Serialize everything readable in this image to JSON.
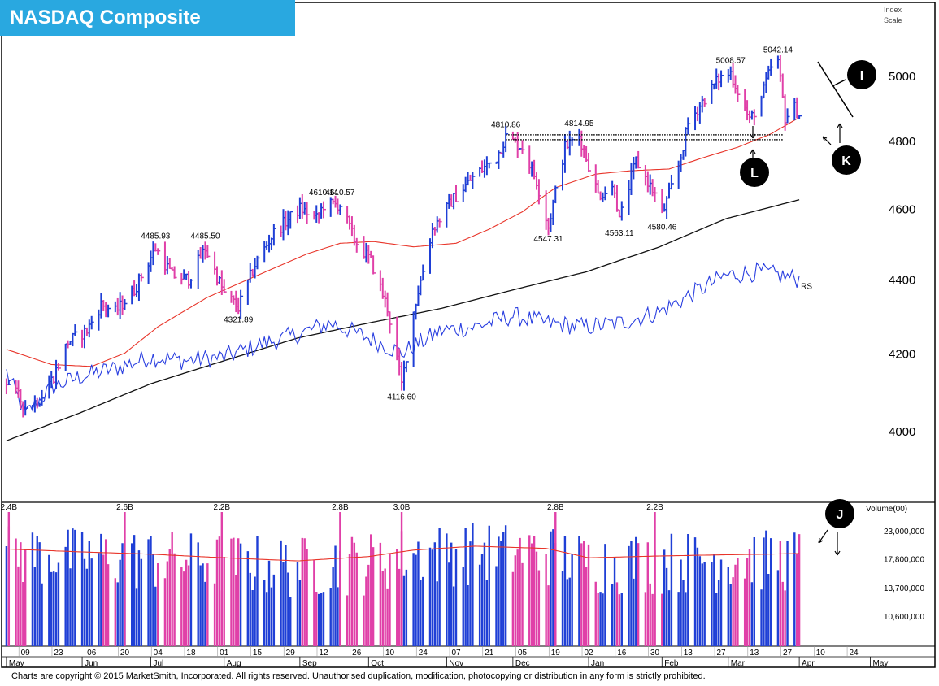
{
  "title": "NASDAQ Composite",
  "copyright": "Charts are copyright © 2015 MarketSmith, Incorporated. All rights reserved. Unauthorised duplication, modification, photocopying or distribution in any form is strictly prohibited.",
  "colors": {
    "banner": "#29a8e0",
    "up_bar": "#1f3fd6",
    "down_bar": "#e040a8",
    "ma_short": "#e8352a",
    "ma_long": "#111111",
    "rs_line": "#2a3fe0"
  },
  "chart_data": [
    {
      "type": "line",
      "panel": "price",
      "ylabel": "Index Scale",
      "y_scale": "log",
      "ylim": [
        3820,
        5060
      ],
      "yticks": [
        4000,
        4200,
        4400,
        4600,
        4800,
        5000
      ],
      "x_month_labels": [
        {
          "label": "May",
          "date": "2014-05-01"
        },
        {
          "label": "Jun",
          "date": "2014-06-02"
        },
        {
          "label": "Jul",
          "date": "2014-07-01"
        },
        {
          "label": "Aug",
          "date": "2014-08-01"
        },
        {
          "label": "Sep",
          "date": "2014-09-02"
        },
        {
          "label": "Oct",
          "date": "2014-10-01"
        },
        {
          "label": "Nov",
          "date": "2014-11-03"
        },
        {
          "label": "Dec",
          "date": "2014-12-01"
        },
        {
          "label": "Jan",
          "date": "2015-01-02"
        },
        {
          "label": "Feb",
          "date": "2015-02-02"
        },
        {
          "label": "Mar",
          "date": "2015-03-02"
        },
        {
          "label": "Apr",
          "date": "2015-04-01"
        },
        {
          "label": "May",
          "date": "2015-05-01"
        }
      ],
      "x_day_labels": [
        {
          "label": "09",
          "date": "2014-05-09"
        },
        {
          "label": "23",
          "date": "2014-05-23"
        },
        {
          "label": "06",
          "date": "2014-06-06"
        },
        {
          "label": "20",
          "date": "2014-06-20"
        },
        {
          "label": "04",
          "date": "2014-07-04"
        },
        {
          "label": "18",
          "date": "2014-07-18"
        },
        {
          "label": "01",
          "date": "2014-08-01"
        },
        {
          "label": "15",
          "date": "2014-08-15"
        },
        {
          "label": "29",
          "date": "2014-08-29"
        },
        {
          "label": "12",
          "date": "2014-09-12"
        },
        {
          "label": "26",
          "date": "2014-09-26"
        },
        {
          "label": "10",
          "date": "2014-10-10"
        },
        {
          "label": "24",
          "date": "2014-10-24"
        },
        {
          "label": "07",
          "date": "2014-11-07"
        },
        {
          "label": "21",
          "date": "2014-11-21"
        },
        {
          "label": "05",
          "date": "2014-12-05"
        },
        {
          "label": "19",
          "date": "2014-12-19"
        },
        {
          "label": "02",
          "date": "2015-01-02"
        },
        {
          "label": "16",
          "date": "2015-01-16"
        },
        {
          "label": "30",
          "date": "2015-01-30"
        },
        {
          "label": "13",
          "date": "2015-02-13"
        },
        {
          "label": "27",
          "date": "2015-02-27"
        },
        {
          "label": "13",
          "date": "2015-03-13"
        },
        {
          "label": "27",
          "date": "2015-03-27"
        },
        {
          "label": "10",
          "date": "2015-04-10"
        },
        {
          "label": "24",
          "date": "2015-04-24"
        }
      ],
      "x_range": [
        "2014-04-30",
        "2015-05-06"
      ],
      "price_path": [
        {
          "date": "2014-05-01",
          "value": 4130
        },
        {
          "date": "2014-05-09",
          "value": 4060
        },
        {
          "date": "2014-05-15",
          "value": 4080
        },
        {
          "date": "2014-05-21",
          "value": 4140
        },
        {
          "date": "2014-05-27",
          "value": 4230
        },
        {
          "date": "2014-06-04",
          "value": 4260
        },
        {
          "date": "2014-06-10",
          "value": 4330
        },
        {
          "date": "2014-06-16",
          "value": 4310
        },
        {
          "date": "2014-06-24",
          "value": 4370
        },
        {
          "date": "2014-07-03",
          "value": 4485.93
        },
        {
          "date": "2014-07-10",
          "value": 4410
        },
        {
          "date": "2014-07-17",
          "value": 4400
        },
        {
          "date": "2014-07-24",
          "value": 4485.5
        },
        {
          "date": "2014-08-01",
          "value": 4360
        },
        {
          "date": "2014-08-07",
          "value": 4321.89
        },
        {
          "date": "2014-08-14",
          "value": 4440
        },
        {
          "date": "2014-08-22",
          "value": 4530
        },
        {
          "date": "2014-09-02",
          "value": 4600
        },
        {
          "date": "2014-09-09",
          "value": 4570
        },
        {
          "date": "2014-09-12",
          "value": 4610.14
        },
        {
          "date": "2014-09-19",
          "value": 4610.57
        },
        {
          "date": "2014-09-25",
          "value": 4510
        },
        {
          "date": "2014-10-02",
          "value": 4450
        },
        {
          "date": "2014-10-09",
          "value": 4320
        },
        {
          "date": "2014-10-15",
          "value": 4116.6
        },
        {
          "date": "2014-10-20",
          "value": 4310
        },
        {
          "date": "2014-10-28",
          "value": 4540
        },
        {
          "date": "2014-11-05",
          "value": 4620
        },
        {
          "date": "2014-11-14",
          "value": 4690
        },
        {
          "date": "2014-11-24",
          "value": 4750
        },
        {
          "date": "2014-11-28",
          "value": 4810.86
        },
        {
          "date": "2014-12-05",
          "value": 4780
        },
        {
          "date": "2014-12-11",
          "value": 4680
        },
        {
          "date": "2014-12-16",
          "value": 4547.31
        },
        {
          "date": "2014-12-23",
          "value": 4780
        },
        {
          "date": "2014-12-29",
          "value": 4814.95
        },
        {
          "date": "2015-01-06",
          "value": 4640
        },
        {
          "date": "2015-01-13",
          "value": 4660
        },
        {
          "date": "2015-01-15",
          "value": 4563.11
        },
        {
          "date": "2015-01-22",
          "value": 4740
        },
        {
          "date": "2015-01-30",
          "value": 4640
        },
        {
          "date": "2015-02-02",
          "value": 4580.46
        },
        {
          "date": "2015-02-09",
          "value": 4720
        },
        {
          "date": "2015-02-13",
          "value": 4850
        },
        {
          "date": "2015-02-20",
          "value": 4930
        },
        {
          "date": "2015-02-26",
          "value": 4990
        },
        {
          "date": "2015-03-03",
          "value": 5008.57
        },
        {
          "date": "2015-03-11",
          "value": 4860
        },
        {
          "date": "2015-03-16",
          "value": 4930
        },
        {
          "date": "2015-03-20",
          "value": 5025
        },
        {
          "date": "2015-03-23",
          "value": 5042.14
        },
        {
          "date": "2015-03-26",
          "value": 4870
        },
        {
          "date": "2015-03-30",
          "value": 4900
        },
        {
          "date": "2015-04-01",
          "value": 4880
        }
      ],
      "price_labels": [
        {
          "text": "4485.93",
          "date": "2014-07-03",
          "value": 4485.93,
          "pos": "above"
        },
        {
          "text": "4485.50",
          "date": "2014-07-24",
          "value": 4485.5,
          "pos": "above"
        },
        {
          "text": "4321.89",
          "date": "2014-08-07",
          "value": 4321.89,
          "pos": "below"
        },
        {
          "text": "4610.14",
          "date": "2014-09-12",
          "value": 4610.14,
          "pos": "above"
        },
        {
          "text": "4610.57",
          "date": "2014-09-19",
          "value": 4610.57,
          "pos": "above"
        },
        {
          "text": "4116.60",
          "date": "2014-10-15",
          "value": 4116.6,
          "pos": "below"
        },
        {
          "text": "4810.86",
          "date": "2014-11-28",
          "value": 4810.86,
          "pos": "above"
        },
        {
          "text": "4547.31",
          "date": "2014-12-16",
          "value": 4547.31,
          "pos": "below"
        },
        {
          "text": "4814.95",
          "date": "2014-12-29",
          "value": 4814.95,
          "pos": "above"
        },
        {
          "text": "4563.11",
          "date": "2015-01-15",
          "value": 4563.11,
          "pos": "below"
        },
        {
          "text": "4580.46",
          "date": "2015-02-02",
          "value": 4580.46,
          "pos": "below"
        },
        {
          "text": "5008.57",
          "date": "2015-03-03",
          "value": 5008.57,
          "pos": "above"
        },
        {
          "text": "5042.14",
          "date": "2015-03-23",
          "value": 5042.14,
          "pos": "above"
        }
      ],
      "series": [
        {
          "name": "",
          "style": "red-ma",
          "points": [
            {
              "date": "2014-05-01",
              "value": 4210
            },
            {
              "date": "2014-05-20",
              "value": 4170
            },
            {
              "date": "2014-06-06",
              "value": 4165
            },
            {
              "date": "2014-06-20",
              "value": 4200
            },
            {
              "date": "2014-07-04",
              "value": 4270
            },
            {
              "date": "2014-07-25",
              "value": 4350
            },
            {
              "date": "2014-08-15",
              "value": 4410
            },
            {
              "date": "2014-09-05",
              "value": 4470
            },
            {
              "date": "2014-09-19",
              "value": 4500
            },
            {
              "date": "2014-10-03",
              "value": 4505
            },
            {
              "date": "2014-10-20",
              "value": 4490
            },
            {
              "date": "2014-11-07",
              "value": 4500
            },
            {
              "date": "2014-11-21",
              "value": 4540
            },
            {
              "date": "2014-12-05",
              "value": 4590
            },
            {
              "date": "2014-12-19",
              "value": 4660
            },
            {
              "date": "2015-01-05",
              "value": 4700
            },
            {
              "date": "2015-01-20",
              "value": 4710
            },
            {
              "date": "2015-02-05",
              "value": 4715
            },
            {
              "date": "2015-02-20",
              "value": 4750
            },
            {
              "date": "2015-03-06",
              "value": 4780
            },
            {
              "date": "2015-03-20",
              "value": 4820
            },
            {
              "date": "2015-04-01",
              "value": 4870
            }
          ]
        },
        {
          "name": "",
          "style": "black-ma",
          "points": [
            {
              "date": "2014-05-01",
              "value": 3975
            },
            {
              "date": "2014-06-01",
              "value": 4045
            },
            {
              "date": "2014-07-01",
              "value": 4120
            },
            {
              "date": "2014-08-01",
              "value": 4180
            },
            {
              "date": "2014-09-01",
              "value": 4240
            },
            {
              "date": "2014-10-01",
              "value": 4280
            },
            {
              "date": "2014-11-01",
              "value": 4320
            },
            {
              "date": "2014-12-01",
              "value": 4370
            },
            {
              "date": "2015-01-01",
              "value": 4420
            },
            {
              "date": "2015-02-01",
              "value": 4490
            },
            {
              "date": "2015-03-01",
              "value": 4570
            },
            {
              "date": "2015-04-01",
              "value": 4625
            }
          ]
        },
        {
          "name": "RS",
          "style": "blue-rs",
          "points": [
            {
              "date": "2014-05-01",
              "value": 4150
            },
            {
              "date": "2014-05-09",
              "value": 4040
            },
            {
              "date": "2014-05-20",
              "value": 4110
            },
            {
              "date": "2014-06-02",
              "value": 4140
            },
            {
              "date": "2014-06-16",
              "value": 4160
            },
            {
              "date": "2014-07-01",
              "value": 4190
            },
            {
              "date": "2014-07-15",
              "value": 4180
            },
            {
              "date": "2014-08-01",
              "value": 4190
            },
            {
              "date": "2014-08-15",
              "value": 4220
            },
            {
              "date": "2014-09-01",
              "value": 4250
            },
            {
              "date": "2014-09-15",
              "value": 4280
            },
            {
              "date": "2014-10-01",
              "value": 4240
            },
            {
              "date": "2014-10-15",
              "value": 4200
            },
            {
              "date": "2014-11-01",
              "value": 4260
            },
            {
              "date": "2014-11-15",
              "value": 4270
            },
            {
              "date": "2014-12-01",
              "value": 4300
            },
            {
              "date": "2014-12-15",
              "value": 4280
            },
            {
              "date": "2015-01-01",
              "value": 4270
            },
            {
              "date": "2015-01-15",
              "value": 4280
            },
            {
              "date": "2015-02-01",
              "value": 4310
            },
            {
              "date": "2015-02-15",
              "value": 4360
            },
            {
              "date": "2015-03-01",
              "value": 4410
            },
            {
              "date": "2015-03-15",
              "value": 4420
            },
            {
              "date": "2015-04-01",
              "value": 4400
            }
          ]
        }
      ],
      "resistance_line": {
        "from": "2014-11-28",
        "to": "2015-03-23",
        "value": 4810
      },
      "annotations": [
        {
          "label": "I",
          "kind": "callout"
        },
        {
          "label": "K",
          "kind": "callout"
        },
        {
          "label": "L",
          "kind": "callout"
        }
      ]
    },
    {
      "type": "bar",
      "panel": "volume",
      "ylabel": "Volume(00)",
      "y_scale": "log",
      "ylim": [
        7500000,
        32000000
      ],
      "yticks": [
        {
          "label": "23,000,000",
          "value": 23000000
        },
        {
          "label": "17,800,000",
          "value": 17800000
        },
        {
          "label": "13,700,000",
          "value": 13700000
        },
        {
          "label": "10,600,000",
          "value": 10600000
        }
      ],
      "volume_labels": [
        {
          "text": "2.4B",
          "date": "2014-05-02"
        },
        {
          "text": "2.6B",
          "date": "2014-06-20"
        },
        {
          "text": "2.2B",
          "date": "2014-07-31"
        },
        {
          "text": "2.8B",
          "date": "2014-09-19"
        },
        {
          "text": "3.0B",
          "date": "2014-10-15"
        },
        {
          "text": "2.8B",
          "date": "2014-12-19"
        },
        {
          "text": "2.2B",
          "date": "2015-01-30"
        }
      ],
      "average_line": [
        {
          "date": "2014-05-01",
          "value": 19500000
        },
        {
          "date": "2014-06-01",
          "value": 19000000
        },
        {
          "date": "2014-07-01",
          "value": 18600000
        },
        {
          "date": "2014-08-01",
          "value": 18000000
        },
        {
          "date": "2014-09-01",
          "value": 17500000
        },
        {
          "date": "2014-10-01",
          "value": 18200000
        },
        {
          "date": "2014-10-20",
          "value": 19300000
        },
        {
          "date": "2014-11-15",
          "value": 20000000
        },
        {
          "date": "2014-12-15",
          "value": 19600000
        },
        {
          "date": "2015-01-02",
          "value": 18000000
        },
        {
          "date": "2015-02-01",
          "value": 18300000
        },
        {
          "date": "2015-03-01",
          "value": 18500000
        },
        {
          "date": "2015-04-01",
          "value": 18700000
        }
      ],
      "annotations": [
        {
          "label": "J",
          "kind": "callout"
        }
      ]
    }
  ]
}
